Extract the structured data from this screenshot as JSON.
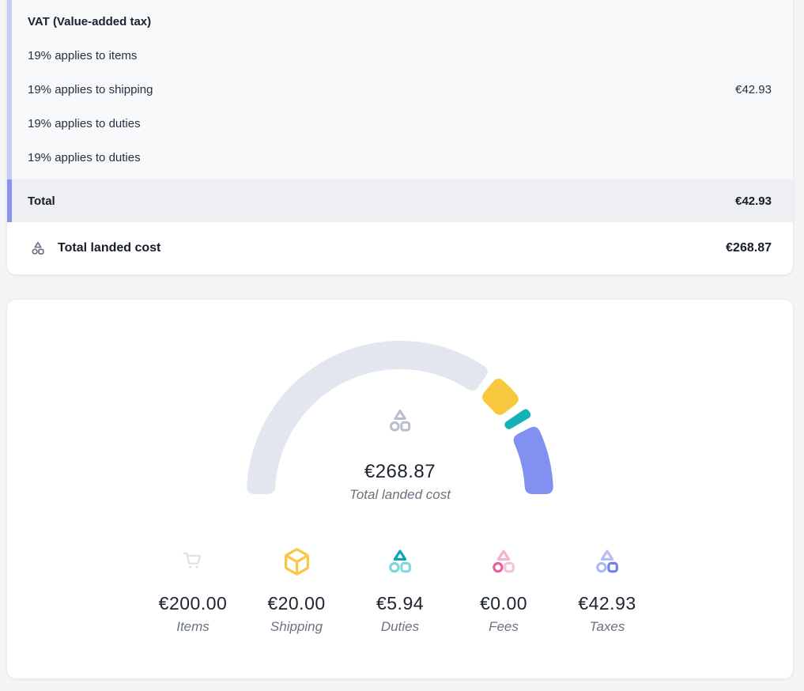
{
  "tax_card": {
    "header": "VAT (Value-added tax)",
    "lines": [
      {
        "label": "19% applies to items",
        "value": ""
      },
      {
        "label": "19% applies to shipping",
        "value": "€42.93"
      },
      {
        "label": "19% applies to duties",
        "value": ""
      },
      {
        "label": "19% applies to duties",
        "value": ""
      }
    ],
    "total": {
      "label": "Total",
      "value": "€42.93"
    },
    "summary": {
      "label": "Total landed cost",
      "value": "€268.87",
      "icon": "shapes-icon"
    },
    "accent_light": "#c7cdf4",
    "accent_dark": "#8992ef"
  },
  "chart_data": {
    "type": "gauge",
    "shape": "semicircle",
    "arc_degrees": 180,
    "currency": "EUR",
    "center_value": "€268.87",
    "center_label": "Total landed cost",
    "center_icon": "shapes-icon",
    "total": 268.87,
    "legend_position": "bottom",
    "segments": [
      {
        "name": "Items",
        "value": 200,
        "display": "€200.00",
        "gauge_color": "#e2e6ee",
        "icon": "cart-icon"
      },
      {
        "name": "Shipping",
        "value": 20,
        "display": "€20.00",
        "gauge_color": "#f8c83f",
        "icon": "box-icon"
      },
      {
        "name": "Duties",
        "value": 5.94,
        "display": "€5.94",
        "gauge_color": "#14b1b7",
        "icon": "shapes-icon"
      },
      {
        "name": "Fees",
        "value": 0,
        "display": "€0.00",
        "gauge_color": "#ec5f9e",
        "icon": "shapes-icon"
      },
      {
        "name": "Taxes",
        "value": 42.93,
        "display": "€42.93",
        "gauge_color": "#8290f2",
        "icon": "shapes-icon"
      }
    ]
  },
  "colors": {
    "page_background": "#f3f5f7",
    "section_background": "#f8f9fa",
    "total_row_background": "#edeff2"
  }
}
